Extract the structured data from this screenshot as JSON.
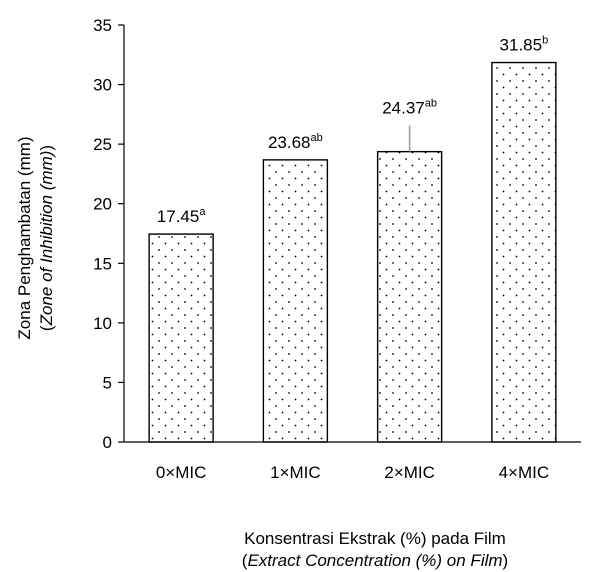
{
  "chart_data": {
    "type": "bar",
    "title": "",
    "categories": [
      "0×MIC",
      "1×MIC",
      "2×MIC",
      "4×MIC"
    ],
    "values": [
      17.45,
      23.68,
      24.37,
      31.85
    ],
    "value_labels": [
      "17.45",
      "23.68",
      "24.37",
      "31.85"
    ],
    "significance": [
      "a",
      "ab",
      "ab",
      "b"
    ],
    "error_bars": [
      0,
      0,
      2.2,
      0
    ],
    "ylim": [
      0,
      35
    ],
    "yticks": [
      0,
      5,
      10,
      15,
      20,
      25,
      30,
      35
    ],
    "ylabel": {
      "line1": "Zona Penghambatan (mm)",
      "line2_open": "(",
      "line2_italic": "Zone of Inhibition (mm)",
      "line2_close": ")"
    },
    "xlabel": {
      "line1": "Konsentrasi Ekstrak (%) pada Film",
      "line2_open": "(",
      "line2_italic": "Extract Concentration (%) on Film",
      "line2_close": ")"
    },
    "grid": false,
    "legend": "none",
    "bar_fill": "dotted-pattern",
    "colors": {
      "bar_stroke": "#000000",
      "bar_dots": "#000000",
      "background": "#ffffff"
    }
  }
}
